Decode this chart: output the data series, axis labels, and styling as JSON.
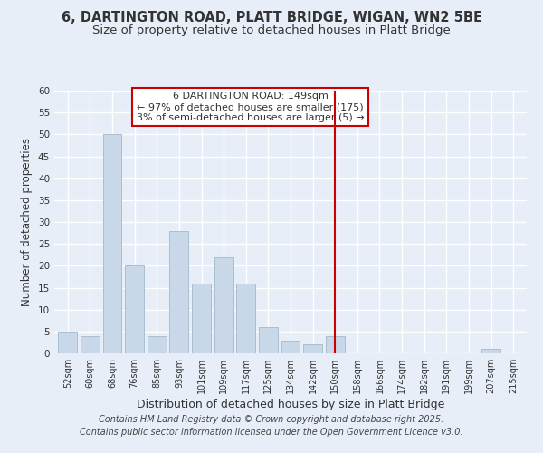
{
  "title": "6, DARTINGTON ROAD, PLATT BRIDGE, WIGAN, WN2 5BE",
  "subtitle": "Size of property relative to detached houses in Platt Bridge",
  "xlabel": "Distribution of detached houses by size in Platt Bridge",
  "ylabel": "Number of detached properties",
  "bar_labels": [
    "52sqm",
    "60sqm",
    "68sqm",
    "76sqm",
    "85sqm",
    "93sqm",
    "101sqm",
    "109sqm",
    "117sqm",
    "125sqm",
    "134sqm",
    "142sqm",
    "150sqm",
    "158sqm",
    "166sqm",
    "174sqm",
    "182sqm",
    "191sqm",
    "199sqm",
    "207sqm",
    "215sqm"
  ],
  "bar_values": [
    5,
    4,
    50,
    20,
    4,
    28,
    16,
    22,
    16,
    6,
    3,
    2,
    4,
    0,
    0,
    0,
    0,
    0,
    0,
    1,
    0
  ],
  "bar_color": "#c8d8e8",
  "bar_edge_color": "#a8bfd0",
  "ylim": [
    0,
    60
  ],
  "yticks": [
    0,
    5,
    10,
    15,
    20,
    25,
    30,
    35,
    40,
    45,
    50,
    55,
    60
  ],
  "vline_color": "#cc0000",
  "legend_title": "6 DARTINGTON ROAD: 149sqm",
  "legend_line1": "← 97% of detached houses are smaller (175)",
  "legend_line2": "3% of semi-detached houses are larger (5) →",
  "legend_box_color": "#ffffff",
  "legend_border_color": "#cc0000",
  "bg_color": "#e8eef8",
  "footer1": "Contains HM Land Registry data © Crown copyright and database right 2025.",
  "footer2": "Contains public sector information licensed under the Open Government Licence v3.0.",
  "title_fontsize": 10.5,
  "subtitle_fontsize": 9.5
}
